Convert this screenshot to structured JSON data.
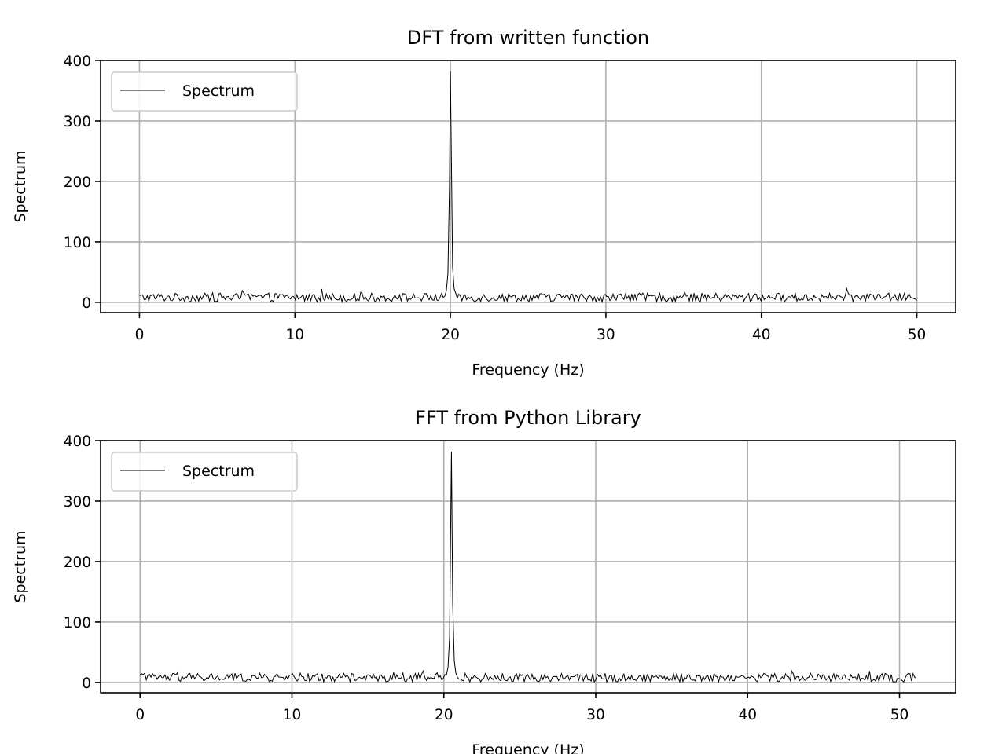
{
  "chart_data": [
    {
      "type": "line",
      "title": "DFT from written function",
      "xlabel": "Frequency (Hz)",
      "ylabel": "Spectrum",
      "xlim": [
        -2.5,
        52.5
      ],
      "ylim": [
        -17,
        400
      ],
      "xticks": [
        0,
        10,
        20,
        30,
        40,
        50
      ],
      "yticks": [
        0,
        100,
        200,
        300,
        400
      ],
      "grid": true,
      "legend": {
        "position": "top-left"
      },
      "series": [
        {
          "name": "Spectrum",
          "color": "#000000",
          "x_start": 0,
          "x_end": 50,
          "num_points": 500,
          "noise_floor_range": [
            1,
            20
          ],
          "peak": {
            "x": 20.0,
            "y": 382
          }
        }
      ]
    },
    {
      "type": "line",
      "title": "FFT from Python Library",
      "xlabel": "Frequency (Hz)",
      "ylabel": "Spectrum",
      "xlim": [
        -2.6,
        53.7
      ],
      "ylim": [
        -17,
        400
      ],
      "xticks": [
        0,
        10,
        20,
        30,
        40,
        50
      ],
      "yticks": [
        0,
        100,
        200,
        300,
        400
      ],
      "grid": true,
      "legend": {
        "position": "top-left"
      },
      "series": [
        {
          "name": "Spectrum",
          "color": "#000000",
          "x_start": 0,
          "x_end": 51.1,
          "num_points": 500,
          "noise_floor_range": [
            1,
            20
          ],
          "peak": {
            "x": 20.5,
            "y": 382
          }
        }
      ]
    }
  ]
}
